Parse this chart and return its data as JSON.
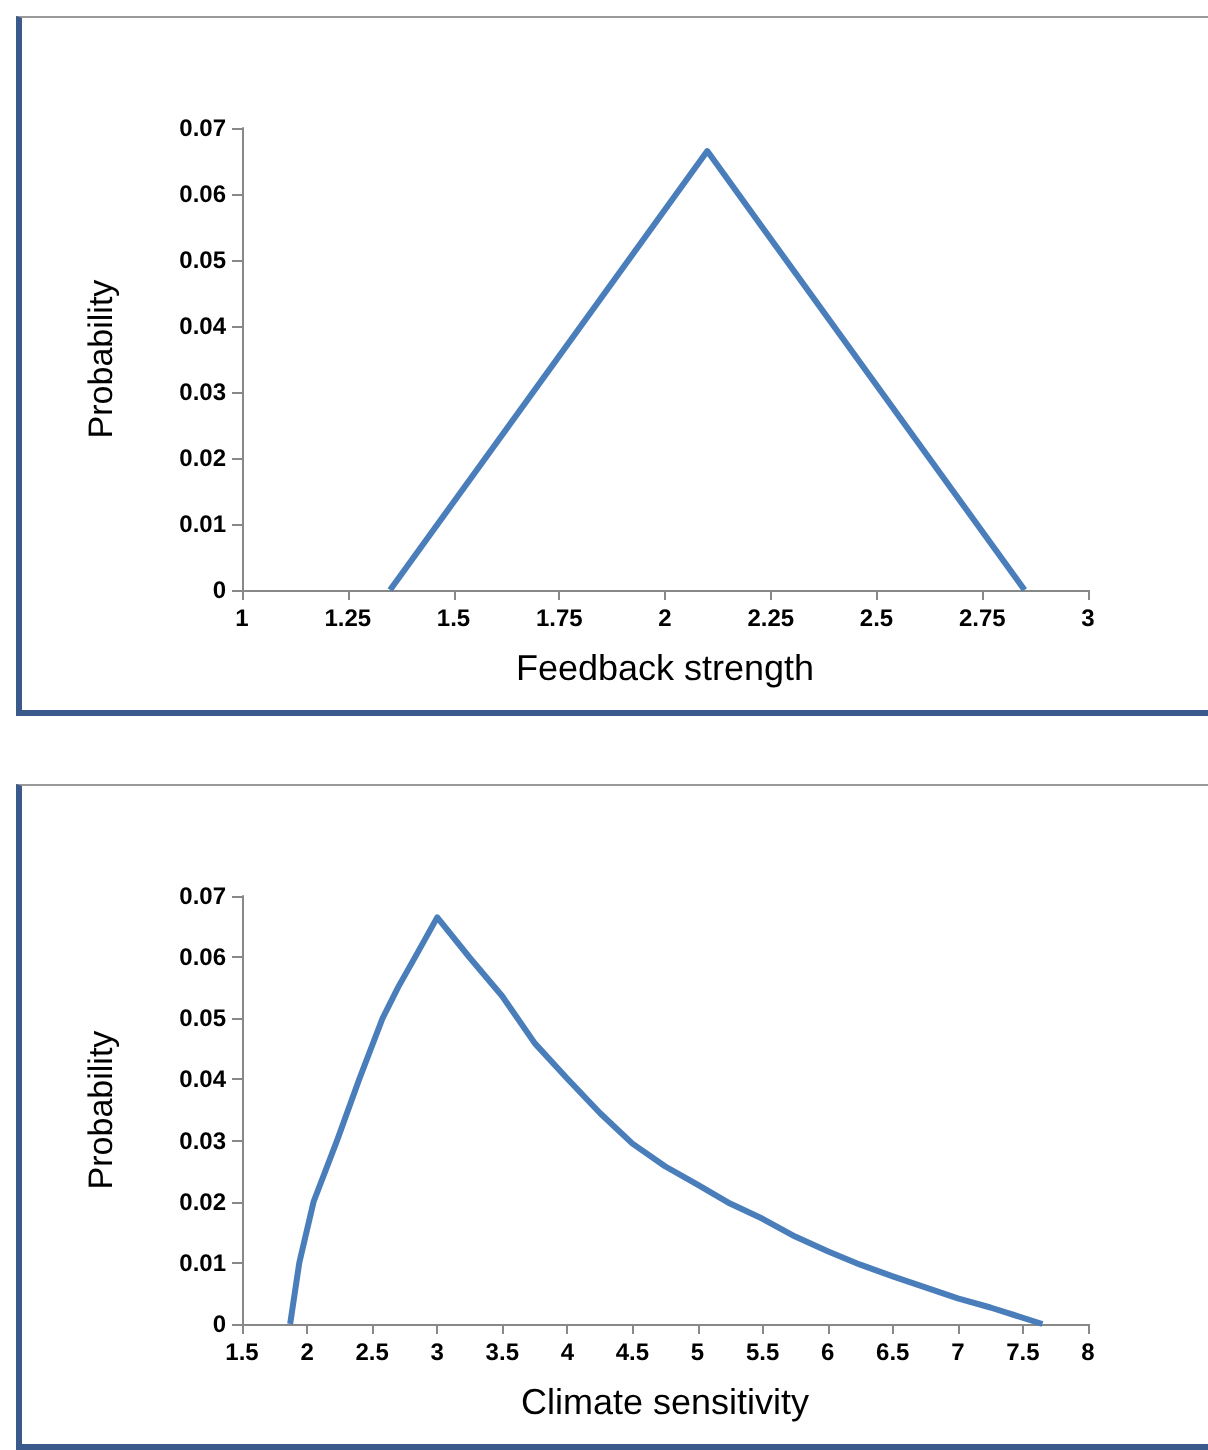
{
  "chart_data": [
    {
      "type": "line",
      "xlabel": "Feedback strength",
      "ylabel": "Probability",
      "x": [
        1.35,
        2.1,
        2.85
      ],
      "series": [
        {
          "color": "#4a7ebb",
          "values": [
            0,
            0.0665,
            0
          ]
        }
      ],
      "xlim": [
        1,
        3
      ],
      "xticks": [
        1,
        1.25,
        1.5,
        1.75,
        2,
        2.25,
        2.5,
        2.75,
        3
      ],
      "ylim": [
        0,
        0.07
      ],
      "yticks": [
        0,
        0.01,
        0.02,
        0.03,
        0.04,
        0.05,
        0.06,
        0.07
      ],
      "grid": false,
      "marker": "none",
      "line_style": "solid"
    },
    {
      "type": "line",
      "xlabel": "Climate sensitivity",
      "ylabel": "Probability",
      "x": [
        1.87,
        1.94,
        2.05,
        2.23,
        2.4,
        2.58,
        2.7,
        2.83,
        3,
        3.25,
        3.5,
        3.75,
        4,
        4.25,
        4.5,
        4.75,
        5,
        5.25,
        5.5,
        5.75,
        6,
        6.25,
        6.5,
        6.75,
        7,
        7.25,
        7.65
      ],
      "series": [
        {
          "color": "#4a7ebb",
          "values": [
            0,
            0.01,
            0.02,
            0.03,
            0.04,
            0.05,
            0.0551,
            0.06,
            0.0665,
            0.0599,
            0.0536,
            0.0459,
            0.0401,
            0.0345,
            0.0295,
            0.0258,
            0.0228,
            0.0197,
            0.0172,
            0.0143,
            0.0119,
            0.0097,
            0.0078,
            0.006,
            0.0042,
            0.0027,
            0
          ]
        }
      ],
      "xlim": [
        1.5,
        8
      ],
      "xticks": [
        1.5,
        2,
        2.5,
        3,
        3.5,
        4,
        4.5,
        5,
        5.5,
        6,
        6.5,
        7,
        7.5,
        8
      ],
      "ylim": [
        0,
        0.07
      ],
      "yticks": [
        0,
        0.01,
        0.02,
        0.03,
        0.04,
        0.05,
        0.06,
        0.07
      ],
      "grid": false,
      "marker": "none",
      "line_style": "solid"
    }
  ]
}
